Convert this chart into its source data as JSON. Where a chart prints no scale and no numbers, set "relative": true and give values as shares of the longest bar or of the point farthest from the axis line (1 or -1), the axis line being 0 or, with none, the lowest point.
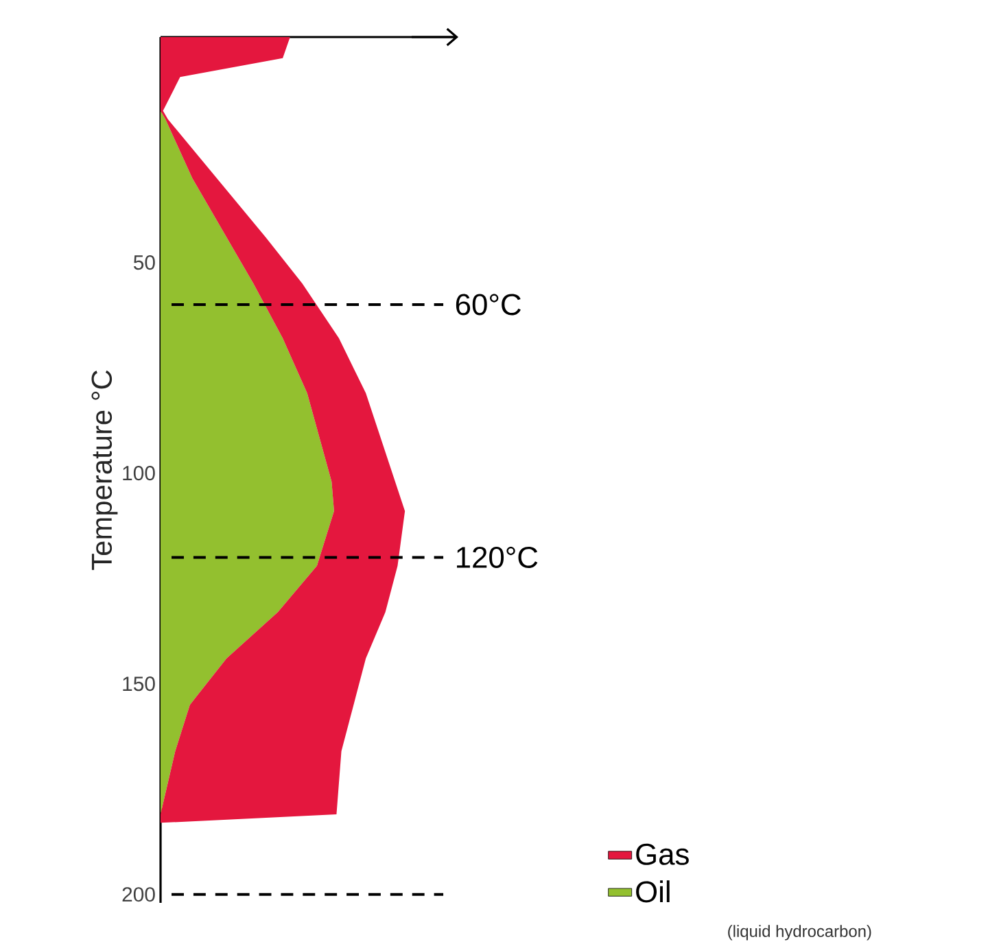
{
  "chart_data": {
    "type": "area",
    "orientation": "horizontal",
    "stacked": true,
    "relative": true,
    "ylabel": "Temperature °C",
    "x": [
      -3.5,
      1.5,
      6,
      14,
      16,
      30,
      44,
      55,
      68,
      81,
      102,
      109,
      122,
      133,
      144,
      155,
      166,
      181,
      183
    ],
    "series": [
      {
        "name": "Oil",
        "color": "#93c02f",
        "values": [
          0,
          0,
          0,
          0,
          0.02,
          0.13,
          0.27,
          0.38,
          0.5,
          0.6,
          0.7,
          0.71,
          0.64,
          0.48,
          0.27,
          0.12,
          0.06,
          0,
          0
        ]
      },
      {
        "name": "Gas",
        "color": "#e4173e",
        "values": [
          0.53,
          0.5,
          0.08,
          0.01,
          0.01,
          0.1,
          0.16,
          0.2,
          0.23,
          0.24,
          0.26,
          0.29,
          0.33,
          0.44,
          0.57,
          0.67,
          0.68,
          0.72,
          0
        ]
      }
    ],
    "ylim": [
      202,
      -3.5
    ],
    "yticks": [
      50,
      100,
      150,
      200
    ],
    "ref_lines": [
      {
        "axis": "y",
        "value": 60,
        "label": "60°C",
        "line_style": "dashed"
      },
      {
        "axis": "y",
        "value": 120,
        "label": "120°C",
        "line_style": "dashed"
      },
      {
        "axis": "y",
        "value": 200,
        "label": null,
        "line_style": "dashed"
      }
    ],
    "legend": "bottom right",
    "annotations": [
      "(liquid hydrocarbon)"
    ]
  }
}
